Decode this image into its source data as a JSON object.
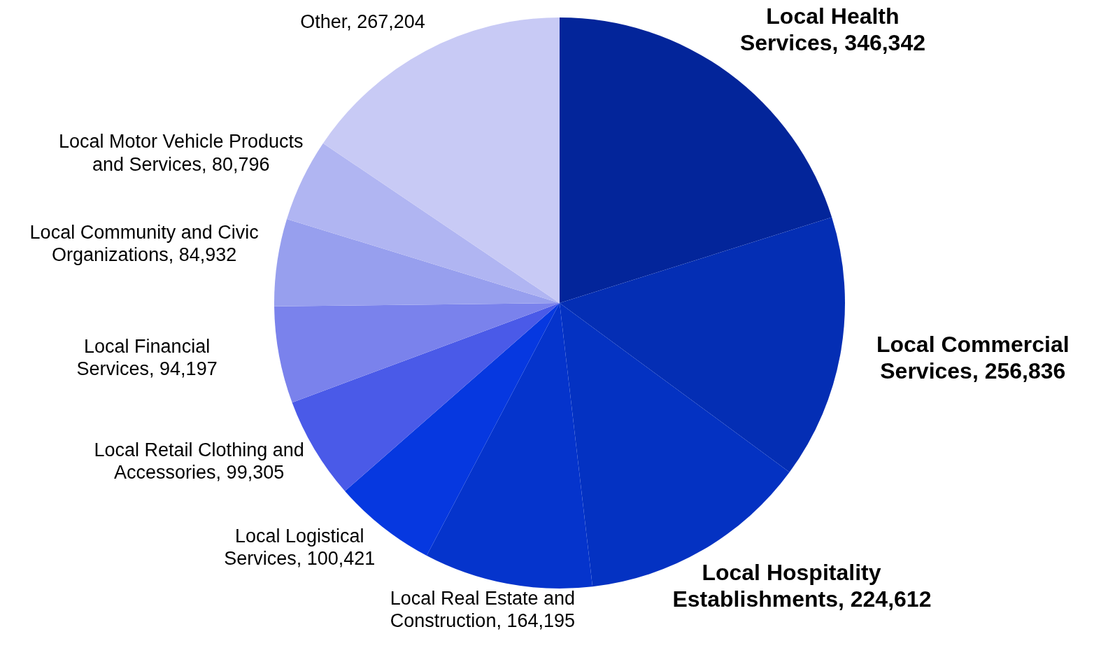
{
  "chart_data": {
    "type": "pie",
    "categories": [
      "Local Health Services",
      "Local Commercial Services",
      "Local Hospitality Establishments",
      "Local Real Estate and Construction",
      "Local Logistical Services",
      "Local Retail Clothing and Accessories",
      "Local Financial Services",
      "Local Community and Civic Organizations",
      "Local Motor Vehicle Products and Services",
      "Other"
    ],
    "values": [
      346342,
      256836,
      224612,
      164195,
      100421,
      99305,
      94197,
      84932,
      80796,
      267204
    ],
    "value_labels": [
      "346,342",
      "256,836",
      "224,612",
      "164,195",
      "100,421",
      "99,305",
      "94,197",
      "84,932",
      "80,796",
      "267,204"
    ],
    "colors": [
      "#03259a",
      "#042eb4",
      "#0432c2",
      "#0534cc",
      "#0638e0",
      "#4a5ae8",
      "#7a82ec",
      "#979fee",
      "#b0b5f2",
      "#c8caf5"
    ],
    "legend": false
  }
}
